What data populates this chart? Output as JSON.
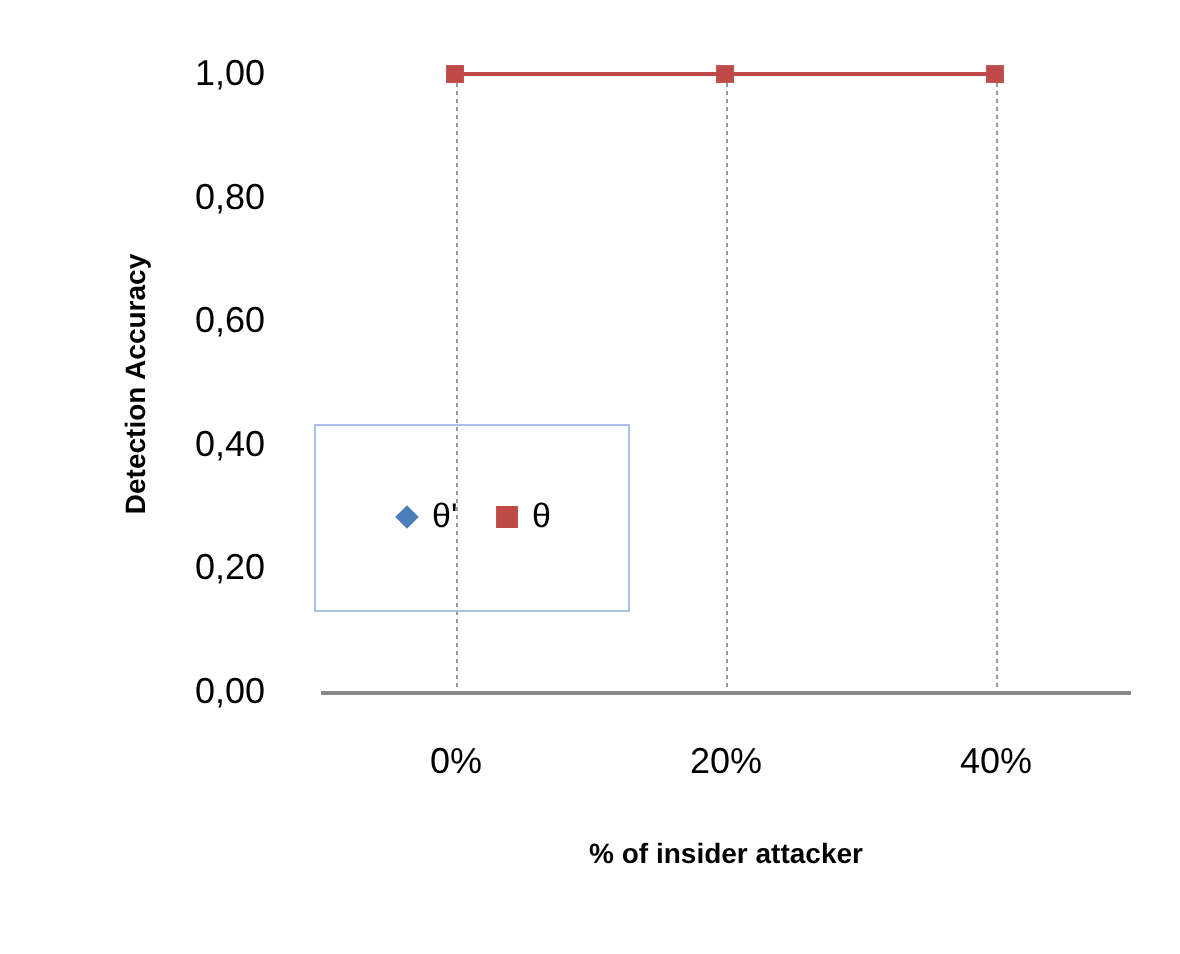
{
  "chart_data": {
    "type": "line",
    "xlabel": "% of insider attacker",
    "ylabel": "Detection Accuracy",
    "categories": [
      "0%",
      "20%",
      "40%"
    ],
    "series": [
      {
        "name": "θ'",
        "color": "#4a7ebb",
        "marker": "diamond",
        "values": [
          null,
          null,
          null
        ]
      },
      {
        "name": "θ",
        "color": "#be4b48",
        "marker": "square",
        "values": [
          1,
          1,
          1
        ]
      }
    ],
    "ylim": [
      0,
      1
    ],
    "yticks": [
      {
        "value": 0,
        "label": "0,00"
      },
      {
        "value": 0.2,
        "label": "0,20"
      },
      {
        "value": 0.4,
        "label": "0,40"
      },
      {
        "value": 0.6,
        "label": "0,60"
      },
      {
        "value": 0.8,
        "label": "0,80"
      },
      {
        "value": 1,
        "label": "1,00"
      }
    ],
    "grid": "x",
    "legend": "bottom left",
    "line_style": "solid"
  }
}
